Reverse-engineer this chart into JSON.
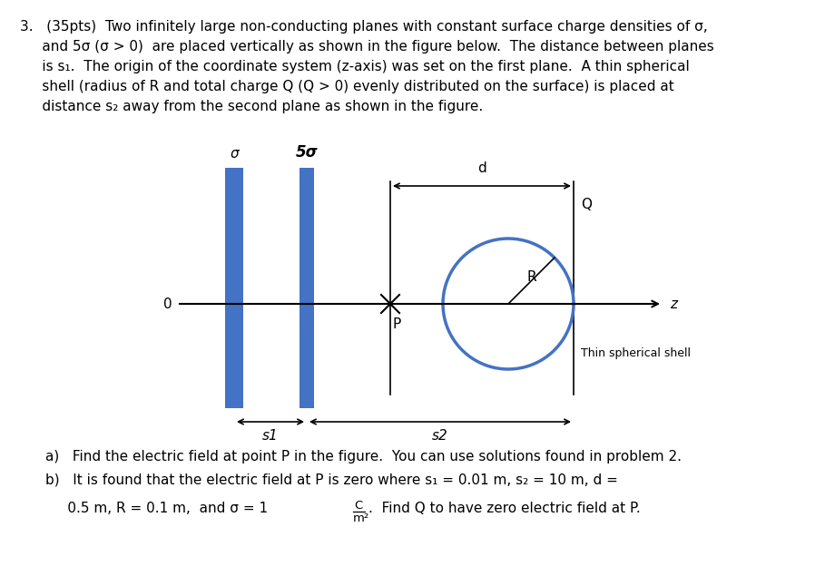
{
  "text_top": "3.   (35pts)  Two infinitely large non-conducting planes with constant surface charge densities of σ,",
  "text_line2": "     and 5σ (σ > 0)  are placed vertically as shown in the figure below.  The distance between planes",
  "text_line3": "     is s₁.  The origin of the coordinate system (z-axis) was set on the first plane.  A thin spherical",
  "text_line4": "     shell (radius of R and total charge Q (Q > 0) evenly distributed on the surface) is placed at",
  "text_line5": "     distance s₂ away from the second plane as shown in the figure.",
  "text_a": "a)   Find the electric field at point P in the figure.  You can use solutions found in problem 2.",
  "text_b": "b)   It is found that the electric field at P is zero where s₁ = 0.01 m, s₂ = 10 m, d =",
  "text_c_left": "     0.5 m, R = 0.1 m,  and σ = 1",
  "text_c_right": ".  Find Q to have zero electric field at P.",
  "frac_num": "C",
  "frac_den": "m²",
  "sigma_label": "σ",
  "five_sigma_label": "5σ",
  "label_O": "0",
  "label_P": "P",
  "label_d": "d",
  "label_Q": "Q",
  "label_R": "R",
  "label_z": "z",
  "label_s1": "s1",
  "label_s2": "s2",
  "label_shell": "Thin spherical shell",
  "plane1_color": "#4472C4",
  "plane2_color": "#4472C4",
  "sphere_color": "#4472C4",
  "line_color": "#000000",
  "bg_color": "#ffffff",
  "fig_width": 9.09,
  "fig_height": 6.24,
  "font_size_main": 11.0,
  "font_size_diagram": 11.0
}
